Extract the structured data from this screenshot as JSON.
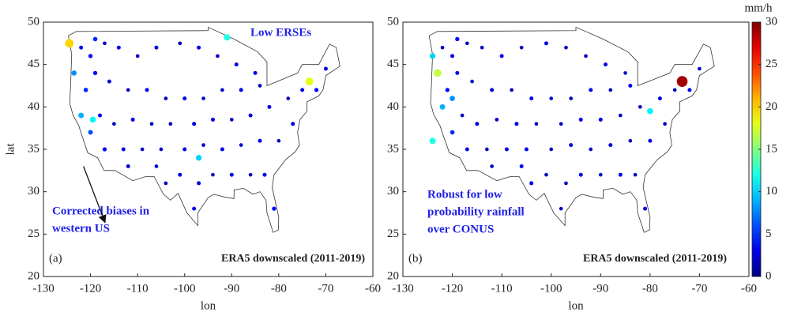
{
  "chart_data": [
    {
      "type": "scatter",
      "xlabel": "lon",
      "ylabel": "lat",
      "panel_label": "(a)",
      "caption": "ERA5 downscaled (2011-2019)",
      "annotations": [
        "Low ERSEs",
        "Corrected biases in",
        "western US"
      ],
      "xlim": [
        -130,
        -60
      ],
      "xticks": [
        -130,
        -120,
        -110,
        -100,
        -90,
        -80,
        -70,
        -60
      ],
      "ylim": [
        20,
        50
      ],
      "yticks": [
        20,
        25,
        30,
        35,
        40,
        45,
        50
      ],
      "x": [
        -122,
        -120,
        -117,
        -114,
        -110,
        -106,
        -101,
        -97,
        -93,
        -89,
        -85,
        -84,
        -88,
        -92,
        -96,
        -100,
        -104,
        -108,
        -112,
        -116,
        -119,
        -121,
        -118,
        -115,
        -111,
        -107,
        -103,
        -98,
        -94,
        -90,
        -86,
        -82,
        -78,
        -75,
        -72,
        -70,
        -77,
        -80,
        -84,
        -88,
        -92,
        -96,
        -100,
        -105,
        -109,
        -113,
        -117,
        -120,
        -112,
        -106,
        -101,
        -97,
        -94,
        -90,
        -86,
        -83,
        -81,
        -98,
        -104,
        -119,
        -124.5,
        -91,
        -73.5,
        -123.5,
        -122,
        -97,
        -119.5
      ],
      "y": [
        47,
        46,
        47.5,
        47,
        46,
        47,
        47.5,
        47,
        46,
        45,
        44,
        42.5,
        42,
        42,
        41,
        41,
        41,
        42,
        42,
        43,
        44,
        42,
        39,
        38,
        38.5,
        38,
        38,
        38,
        38.5,
        38.5,
        39,
        40,
        41,
        42,
        42,
        44.5,
        38,
        36,
        36,
        35.5,
        35,
        35.5,
        35,
        35,
        35,
        35,
        35,
        37,
        33,
        33,
        32,
        31,
        32,
        32,
        32,
        32,
        28,
        28,
        31,
        48,
        47.5,
        48.2,
        43,
        44,
        39,
        34,
        38.5
      ],
      "values": [
        3,
        4,
        2,
        3,
        2,
        3,
        2,
        3,
        2,
        3,
        3,
        2,
        3,
        2,
        2,
        3,
        2,
        3,
        2,
        3,
        4,
        5,
        3,
        2,
        3,
        2,
        2,
        3,
        3,
        2,
        3,
        3,
        2,
        3,
        4,
        3,
        3,
        2,
        3,
        2,
        3,
        2,
        3,
        2,
        2,
        3,
        4,
        6,
        3,
        2,
        3,
        3,
        2,
        3,
        2,
        3,
        4,
        3,
        2,
        5,
        20,
        12,
        18,
        8,
        9,
        10,
        11
      ]
    },
    {
      "type": "scatter",
      "xlabel": "lon",
      "panel_label": "(b)",
      "caption": "ERA5 downscaled (2011-2019)",
      "annotations": [
        "Robust for low",
        "probability rainfall",
        "over CONUS"
      ],
      "xlim": [
        -130,
        -60
      ],
      "xticks": [
        -130,
        -120,
        -110,
        -100,
        -90,
        -80,
        -70,
        -60
      ],
      "ylim": [
        20,
        50
      ],
      "yticks": [
        20,
        25,
        30,
        35,
        40,
        45,
        50
      ],
      "colorbar_label": "mm/h",
      "clim": [
        0,
        30
      ],
      "cticks": [
        0,
        5,
        10,
        15,
        20,
        25,
        30
      ],
      "x": [
        -122,
        -120,
        -117,
        -114,
        -110,
        -106,
        -101,
        -97,
        -93,
        -89,
        -85,
        -84,
        -88,
        -92,
        -96,
        -100,
        -104,
        -108,
        -112,
        -116,
        -119,
        -121,
        -118,
        -115,
        -111,
        -107,
        -103,
        -98,
        -94,
        -90,
        -86,
        -82,
        -78,
        -75,
        -72,
        -70,
        -77,
        -80,
        -84,
        -88,
        -92,
        -96,
        -100,
        -105,
        -109,
        -113,
        -117,
        -120,
        -112,
        -106,
        -101,
        -97,
        -94,
        -90,
        -86,
        -83,
        -81,
        -98,
        -104,
        -119,
        -73.5,
        -124,
        -123,
        -122,
        -80,
        -124,
        -120
      ],
      "y": [
        47,
        46,
        47.5,
        47,
        46,
        47,
        47.5,
        47,
        46,
        45,
        44,
        42.5,
        42,
        42,
        41,
        41,
        41,
        42,
        42,
        43,
        44,
        42,
        39,
        38,
        38.5,
        38,
        38,
        38,
        38.5,
        38.5,
        39,
        40,
        41,
        42,
        42,
        44.5,
        38,
        36,
        36,
        35.5,
        35,
        35.5,
        35,
        35,
        35,
        35,
        35,
        37,
        33,
        33,
        32,
        31,
        32,
        32,
        32,
        32,
        28,
        28,
        31,
        48,
        43,
        46,
        44,
        40,
        39.5,
        36,
        41
      ],
      "values": [
        2,
        3,
        2,
        2,
        3,
        2,
        3,
        2,
        2,
        3,
        2,
        3,
        2,
        3,
        2,
        2,
        3,
        2,
        3,
        2,
        3,
        4,
        2,
        3,
        2,
        3,
        2,
        2,
        3,
        3,
        2,
        2,
        3,
        2,
        3,
        2,
        2,
        3,
        2,
        3,
        2,
        3,
        2,
        3,
        3,
        2,
        3,
        5,
        2,
        3,
        2,
        2,
        3,
        2,
        3,
        2,
        3,
        2,
        3,
        4,
        29,
        10,
        17,
        9,
        11,
        12,
        8
      ]
    }
  ]
}
